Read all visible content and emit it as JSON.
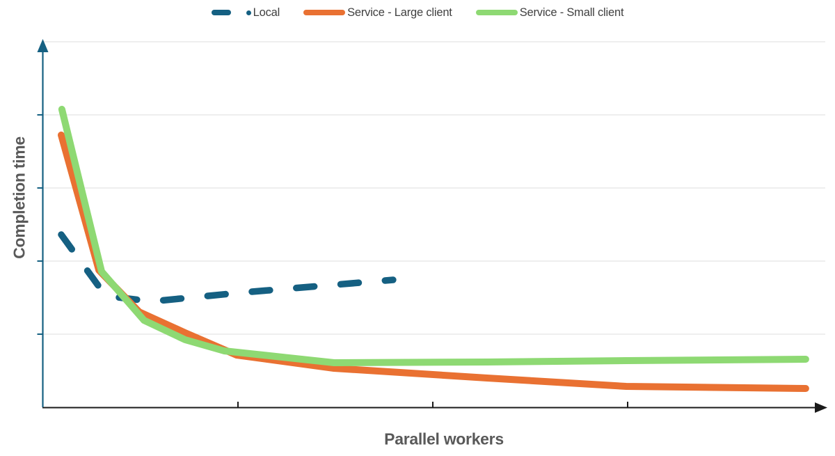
{
  "figure": {
    "background": "#ffffff"
  },
  "chart_data": {
    "type": "line",
    "title": "",
    "xlabel": "Parallel workers",
    "ylabel": "Completion time",
    "x_axis": {
      "tick_labels": [],
      "ticks_units": [
        1,
        2,
        3
      ],
      "range_units": [
        0,
        4.02
      ],
      "axis_color": "#1a1a1a",
      "arrow": true,
      "note": "no numeric labels shown; ticks are unlabeled"
    },
    "y_axis": {
      "tick_labels": [],
      "ticks_units": [
        1,
        2,
        3,
        4
      ],
      "gridlines_units": [
        1,
        2,
        3,
        4,
        5
      ],
      "range_units": [
        0,
        5.25
      ],
      "axis_color": "#156082",
      "gridline_color": "#E4E4E4",
      "arrow": true,
      "note": "no numeric labels shown; y measured in gridline units above x-axis"
    },
    "legend_position": "top-center",
    "series": [
      {
        "name": "Local",
        "color": "#156082",
        "style": "dashed",
        "points": [
          [
            0.093,
            2.362
          ],
          [
            0.321,
            1.524
          ],
          [
            0.557,
            1.448
          ],
          [
            1.029,
            1.571
          ],
          [
            1.796,
            1.743
          ]
        ]
      },
      {
        "name": "Service - Large client",
        "color": "#E97132",
        "style": "solid",
        "points": [
          [
            0.093,
            3.724
          ],
          [
            0.286,
            1.876
          ],
          [
            0.493,
            1.305
          ],
          [
            0.729,
            1.019
          ],
          [
            0.993,
            0.714
          ],
          [
            1.493,
            0.533
          ],
          [
            2.279,
            0.4
          ],
          [
            2.993,
            0.286
          ],
          [
            3.914,
            0.257
          ]
        ]
      },
      {
        "name": "Service - Small client",
        "color": "#8ED973",
        "style": "solid",
        "points": [
          [
            0.096,
            4.076
          ],
          [
            0.3,
            1.857
          ],
          [
            0.518,
            1.19
          ],
          [
            0.729,
            0.924
          ],
          [
            0.929,
            0.771
          ],
          [
            1.493,
            0.61
          ],
          [
            2.279,
            0.619
          ],
          [
            2.993,
            0.638
          ],
          [
            3.914,
            0.657
          ]
        ]
      }
    ]
  }
}
